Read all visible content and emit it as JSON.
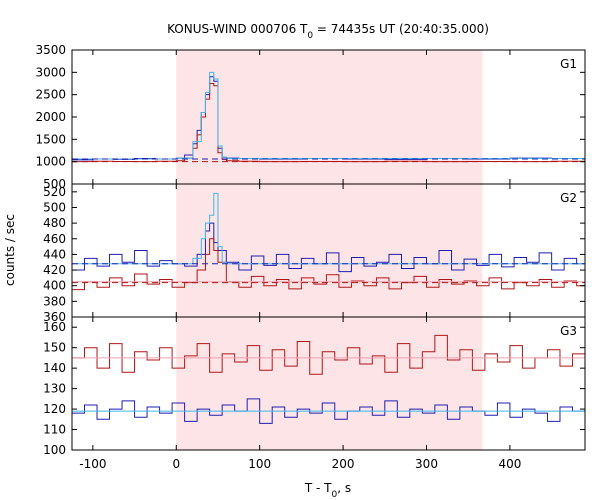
{
  "chart_data": {
    "type": "line",
    "title": "KONUS-WIND 000706 T",
    "title_sub": "0",
    "title_rest": " = 74435s UT (20:40:35.000)",
    "xlabel": "T - T",
    "xlabel_sub": "0",
    "xlabel_rest": ", s",
    "ylabel": "counts / sec",
    "xlim": [
      -125,
      490
    ],
    "xticks": [
      -100,
      0,
      100,
      200,
      300,
      400
    ],
    "highlight_interval": [
      0,
      367
    ],
    "colors": {
      "blue": "#1f1fb4",
      "red": "#b01515",
      "cyan": "#3fb8e8",
      "pink": "#f0a0b0",
      "shade": "#fde4e6"
    },
    "panels": [
      {
        "label": "G1",
        "ylim": [
          500,
          3500
        ],
        "yticks": [
          500,
          1000,
          1500,
          2000,
          2500,
          3000,
          3500
        ],
        "series": [
          {
            "color": "blue",
            "style": "step",
            "x": [
              -125,
              -100,
              -75,
              -50,
              -25,
              0,
              10,
              20,
              25,
              30,
              35,
              40,
              45,
              50,
              55,
              60,
              75,
              100,
              150,
              200,
              250,
              300,
              350,
              400,
              450,
              490
            ],
            "y": [
              1040,
              1060,
              1050,
              1070,
              1060,
              1080,
              1150,
              1400,
              1700,
              2100,
              2500,
              2900,
              2800,
              1300,
              1100,
              1080,
              1070,
              1060,
              1070,
              1060,
              1050,
              1070,
              1060,
              1080,
              1070,
              1060
            ]
          },
          {
            "color": "red",
            "style": "step",
            "x": [
              -125,
              -100,
              -75,
              -50,
              -25,
              0,
              10,
              20,
              25,
              30,
              35,
              40,
              45,
              50,
              55,
              60,
              75,
              100,
              150,
              200,
              250,
              300,
              350,
              400,
              450,
              490
            ],
            "y": [
              1000,
              1010,
              1005,
              1000,
              1010,
              1020,
              1080,
              1300,
              1600,
              2000,
              2400,
              2750,
              2700,
              1200,
              1050,
              1020,
              1010,
              1000,
              1005,
              1000,
              1010,
              1000,
              1005,
              1000,
              1010,
              1000
            ]
          },
          {
            "color": "cyan",
            "style": "step",
            "x": [
              -125,
              0,
              20,
              30,
              35,
              40,
              45,
              50,
              55,
              60,
              490
            ],
            "y": [
              1060,
              1080,
              1450,
              2100,
              2550,
              3000,
              2850,
              1350,
              1100,
              1070,
              1070
            ]
          },
          {
            "color": "blue",
            "style": "dash",
            "x": [
              -125,
              490
            ],
            "y": [
              1060,
              1060
            ]
          },
          {
            "color": "red",
            "style": "dash",
            "x": [
              -125,
              490
            ],
            "y": [
              1000,
              1000
            ]
          }
        ]
      },
      {
        "label": "G2",
        "ylim": [
          360,
          530
        ],
        "yticks": [
          360,
          380,
          400,
          420,
          440,
          460,
          480,
          500,
          520
        ],
        "series": [
          {
            "color": "blue",
            "style": "step",
            "x": [
              -125,
              -110,
              -95,
              -80,
              -65,
              -50,
              -35,
              -20,
              -5,
              10,
              25,
              35,
              40,
              45,
              50,
              60,
              75,
              90,
              105,
              120,
              135,
              150,
              165,
              180,
              195,
              210,
              225,
              240,
              255,
              270,
              285,
              300,
              315,
              330,
              345,
              360,
              375,
              390,
              405,
              420,
              435,
              450,
              465,
              480,
              490
            ],
            "y": [
              420,
              435,
              425,
              440,
              430,
              445,
              425,
              432,
              428,
              425,
              440,
              470,
              480,
              455,
              445,
              430,
              420,
              438,
              426,
              440,
              422,
              435,
              428,
              442,
              418,
              436,
              425,
              430,
              440,
              422,
              436,
              428,
              445,
              420,
              434,
              426,
              440,
              424,
              436,
              430,
              442,
              420,
              435,
              428,
              432
            ]
          },
          {
            "color": "red",
            "style": "step",
            "x": [
              -125,
              -110,
              -95,
              -80,
              -65,
              -50,
              -35,
              -20,
              -5,
              10,
              25,
              35,
              40,
              45,
              50,
              60,
              75,
              90,
              105,
              120,
              135,
              150,
              165,
              180,
              195,
              210,
              225,
              240,
              255,
              270,
              285,
              300,
              315,
              330,
              345,
              360,
              375,
              390,
              405,
              420,
              435,
              450,
              465,
              480,
              490
            ],
            "y": [
              395,
              405,
              398,
              410,
              400,
              415,
              402,
              408,
              398,
              404,
              420,
              440,
              460,
              445,
              430,
              405,
              398,
              412,
              400,
              408,
              396,
              410,
              402,
              414,
              398,
              406,
              400,
              410,
              396,
              404,
              412,
              398,
              408,
              402,
              406,
              400,
              410,
              396,
              404,
              400,
              408,
              398,
              406,
              400,
              404
            ]
          },
          {
            "color": "cyan",
            "style": "step",
            "x": [
              -125,
              0,
              20,
              30,
              35,
              40,
              45,
              50,
              55,
              60,
              490
            ],
            "y": [
              428,
              428,
              435,
              460,
              480,
              490,
              518,
              450,
              430,
              428,
              428
            ]
          },
          {
            "color": "pink",
            "style": "step",
            "x": [
              -125,
              490
            ],
            "y": [
              405,
              405
            ]
          },
          {
            "color": "blue",
            "style": "dash",
            "x": [
              -125,
              490
            ],
            "y": [
              428,
              428
            ]
          },
          {
            "color": "red",
            "style": "dash",
            "x": [
              -125,
              490
            ],
            "y": [
              404,
              404
            ]
          }
        ]
      },
      {
        "label": "G3",
        "ylim": [
          100,
          165
        ],
        "yticks": [
          100,
          110,
          120,
          130,
          140,
          150,
          160
        ],
        "series": [
          {
            "color": "red",
            "style": "step",
            "x": [
              -125,
              -110,
              -95,
              -80,
              -65,
              -50,
              -35,
              -20,
              -5,
              10,
              25,
              40,
              55,
              70,
              85,
              100,
              115,
              130,
              145,
              160,
              175,
              190,
              205,
              220,
              235,
              250,
              265,
              280,
              295,
              310,
              325,
              340,
              355,
              370,
              385,
              400,
              415,
              430,
              445,
              460,
              475,
              490
            ],
            "y": [
              145,
              150,
              140,
              152,
              138,
              148,
              144,
              150,
              140,
              146,
              152,
              138,
              147,
              143,
              151,
              139,
              149,
              141,
              153,
              137,
              148,
              144,
              150,
              142,
              146,
              138,
              152,
              140,
              148,
              156,
              144,
              149,
              139,
              147,
              143,
              151,
              140,
              145,
              149,
              141,
              147,
              143
            ]
          },
          {
            "color": "blue",
            "style": "step",
            "x": [
              -125,
              -110,
              -95,
              -80,
              -65,
              -50,
              -35,
              -20,
              -5,
              10,
              25,
              40,
              55,
              70,
              85,
              100,
              115,
              130,
              145,
              160,
              175,
              190,
              205,
              220,
              235,
              250,
              265,
              280,
              295,
              310,
              325,
              340,
              355,
              370,
              385,
              400,
              415,
              430,
              445,
              460,
              475,
              490
            ],
            "y": [
              118,
              122,
              115,
              120,
              124,
              116,
              121,
              118,
              123,
              114,
              120,
              117,
              122,
              119,
              125,
              113,
              121,
              116,
              120,
              118,
              123,
              115,
              119,
              121,
              117,
              124,
              116,
              120,
              118,
              122,
              115,
              121,
              119,
              117,
              123,
              116,
              120,
              118,
              114,
              121,
              119,
              118
            ]
          },
          {
            "color": "pink",
            "style": "step",
            "x": [
              -125,
              490
            ],
            "y": [
              145,
              145
            ]
          },
          {
            "color": "cyan",
            "style": "step",
            "x": [
              -125,
              490
            ],
            "y": [
              119,
              119
            ]
          }
        ]
      }
    ]
  }
}
